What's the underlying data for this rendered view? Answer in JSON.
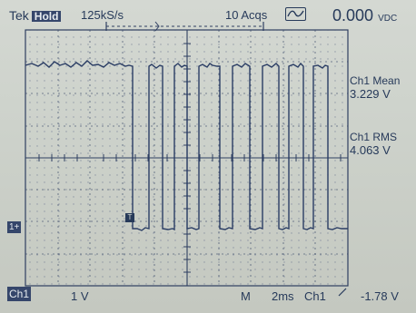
{
  "status_bar": {
    "brand": "Tek",
    "mode": "Hold",
    "sample_rate": "125kS/s",
    "acqs": "10 Acqs",
    "dc_value": "0.000",
    "dc_unit": "VDC"
  },
  "measurements": {
    "mean_label": "Ch1 Mean",
    "mean_value": "3.229 V",
    "rms_label": "Ch1 RMS",
    "rms_value": "4.063 V"
  },
  "bottom_bar": {
    "channel": "Ch1",
    "volts_div": "1 V",
    "mode_marker": "M",
    "time_div": "2ms",
    "trigger_source": "Ch1",
    "trigger_level": "-1.78 V"
  },
  "markers": {
    "ground": "1+",
    "trigger": "T"
  },
  "colors": {
    "trace": "#2a3d64",
    "grid": "#2f3f61",
    "background": "#d4d8d2"
  }
}
